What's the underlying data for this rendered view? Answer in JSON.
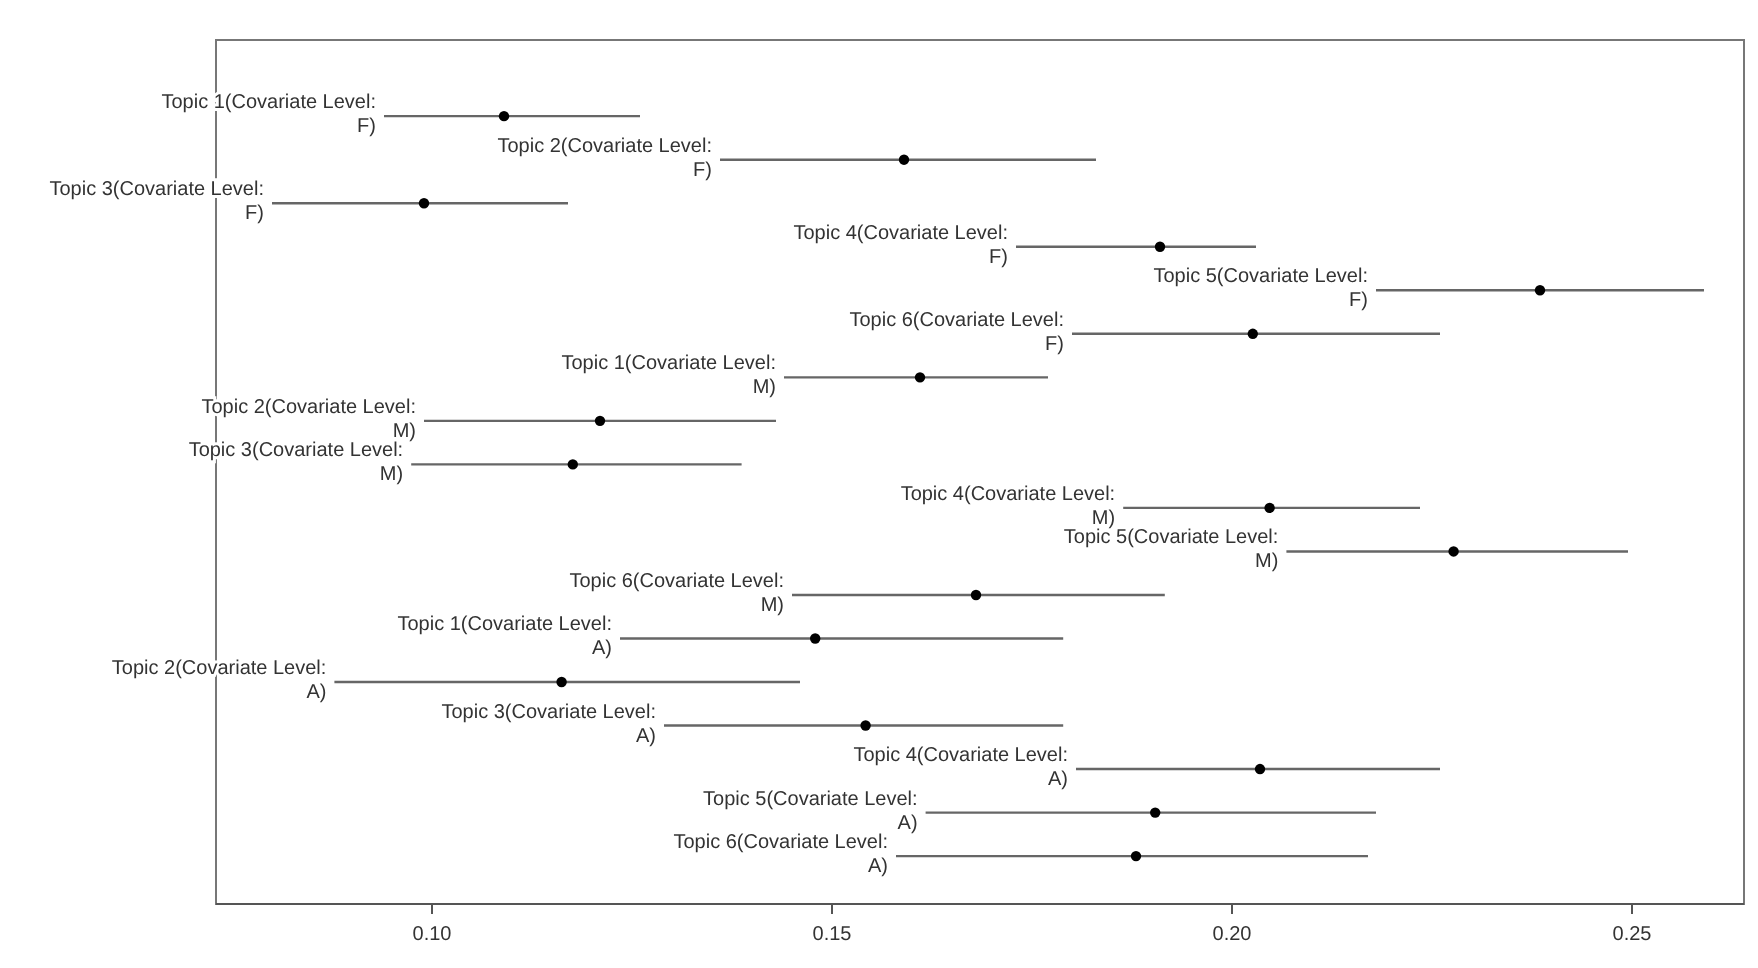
{
  "chart_data": {
    "type": "scatter",
    "orientation": "horizontal",
    "marker": "circle",
    "grid": false,
    "categories": [
      "Topic 1(Covariate Level: F)",
      "Topic 2(Covariate Level: F)",
      "Topic 3(Covariate Level: F)",
      "Topic 4(Covariate Level: F)",
      "Topic 5(Covariate Level: F)",
      "Topic 6(Covariate Level: F)",
      "Topic 1(Covariate Level: M)",
      "Topic 2(Covariate Level: M)",
      "Topic 3(Covariate Level: M)",
      "Topic 4(Covariate Level: M)",
      "Topic 5(Covariate Level: M)",
      "Topic 6(Covariate Level: M)",
      "Topic 1(Covariate Level: A)",
      "Topic 2(Covariate Level: A)",
      "Topic 3(Covariate Level: A)",
      "Topic 4(Covariate Level: A)",
      "Topic 5(Covariate Level: A)",
      "Topic 6(Covariate Level: A)"
    ],
    "xlim": [
      0.073,
      0.264
    ],
    "xticks": [
      {
        "value": 0.1,
        "label": "0.10"
      },
      {
        "value": 0.15,
        "label": "0.15"
      },
      {
        "value": 0.2,
        "label": "0.20"
      },
      {
        "value": 0.25,
        "label": "0.25"
      }
    ],
    "series": [
      {
        "color": "#000000",
        "values": [
          0.109,
          0.159,
          0.099,
          0.191,
          0.2385,
          0.2026,
          0.161,
          0.121,
          0.1176,
          0.2047,
          0.2277,
          0.168,
          0.1479,
          0.1162,
          0.1542,
          0.2035,
          0.1904,
          0.188
        ],
        "errors": [
          [
            0.094,
            0.126
          ],
          [
            0.136,
            0.183
          ],
          [
            0.08,
            0.117
          ],
          [
            0.173,
            0.203
          ],
          [
            0.218,
            0.259
          ],
          [
            0.18,
            0.226
          ],
          [
            0.144,
            0.177
          ],
          [
            0.099,
            0.143
          ],
          [
            0.0974,
            0.1387
          ],
          [
            0.1864,
            0.2235
          ],
          [
            0.2068,
            0.2495
          ],
          [
            0.145,
            0.1916
          ],
          [
            0.1235,
            0.1789
          ],
          [
            0.0878,
            0.146
          ],
          [
            0.129,
            0.1789
          ],
          [
            0.1805,
            0.226
          ],
          [
            0.1617,
            0.218
          ],
          [
            0.158,
            0.217
          ]
        ]
      }
    ]
  }
}
